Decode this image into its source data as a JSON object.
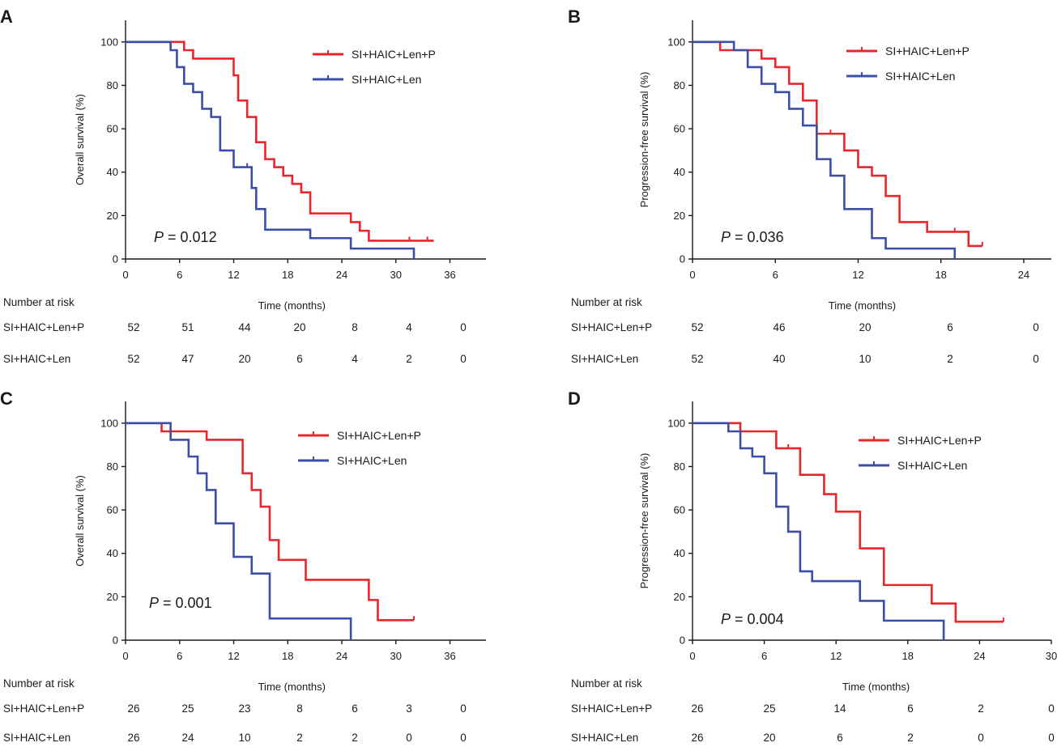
{
  "chart_data": [
    {
      "panel": "A",
      "type": "line",
      "title": "",
      "xlabel": "Time (months)",
      "ylabel": "Overall survival (%)",
      "xlim": [
        0,
        40
      ],
      "ylim": [
        0,
        110
      ],
      "xticks": [
        0,
        6,
        12,
        18,
        24,
        30,
        36
      ],
      "yticks": [
        0,
        20,
        40,
        60,
        80,
        100
      ],
      "pvalue": "= 0.012",
      "risk_title": "Number at risk",
      "risk_times": [
        0,
        6,
        12,
        18,
        24,
        30,
        36
      ],
      "series": [
        {
          "name": "SI+HAIC+Len+P",
          "color": "#e8262c",
          "x": [
            0,
            6.5,
            7.5,
            9,
            12,
            12.5,
            13.5,
            14.5,
            15.5,
            16.5,
            17.5,
            18.5,
            19.5,
            20.5,
            25,
            26,
            27,
            32,
            33.5,
            34.2
          ],
          "y": [
            100,
            96.2,
            92.3,
            92.3,
            84.6,
            73,
            65.4,
            53.8,
            46,
            42.3,
            38.4,
            34.6,
            30.7,
            21,
            17,
            13,
            8.4,
            8.4,
            8.4,
            8.4
          ],
          "censors": [
            [
              31.5,
              8.4
            ],
            [
              33.5,
              8.4
            ]
          ],
          "at_risk": [
            52,
            51,
            44,
            20,
            8,
            4,
            0
          ]
        },
        {
          "name": "SI+HAIC+Len",
          "color": "#3b4fa8",
          "x": [
            0,
            5,
            5.7,
            6.5,
            7.5,
            8.5,
            9.5,
            10.5,
            11,
            12,
            14,
            14.5,
            15.5,
            16.5,
            20.5,
            25,
            32
          ],
          "y": [
            100,
            96.2,
            88.4,
            80.7,
            76.9,
            69.2,
            65.4,
            50,
            50,
            42.3,
            32.7,
            23,
            13.5,
            13.5,
            9.6,
            4.8,
            0
          ],
          "censors": [
            [
              13.5,
              42.3
            ]
          ],
          "at_risk": [
            52,
            47,
            20,
            6,
            4,
            2,
            0
          ]
        }
      ]
    },
    {
      "panel": "B",
      "type": "line",
      "title": "",
      "xlabel": "Time (months)",
      "ylabel": "Progression-free survival (%)",
      "xlim": [
        0,
        26
      ],
      "ylim": [
        0,
        110
      ],
      "xticks": [
        0,
        6,
        12,
        18,
        24
      ],
      "yticks": [
        0,
        20,
        40,
        60,
        80,
        100
      ],
      "pvalue": "= 0.036",
      "risk_title": "Number at risk",
      "risk_times": [
        0,
        6,
        12,
        18,
        24
      ],
      "series": [
        {
          "name": "SI+HAIC+Len+P",
          "color": "#e8262c",
          "x": [
            0,
            2,
            5,
            6,
            7,
            8,
            9,
            11,
            12,
            13,
            14,
            15,
            17,
            20,
            21
          ],
          "y": [
            100,
            96.2,
            92.3,
            88.4,
            80.7,
            73,
            57.7,
            50,
            42.3,
            38.4,
            29,
            17,
            12.5,
            6,
            6
          ],
          "censors": [
            [
              10,
              57.7
            ],
            [
              19,
              12.5
            ],
            [
              21,
              6
            ]
          ],
          "at_risk": [
            52,
            46,
            20,
            6,
            0
          ]
        },
        {
          "name": "SI+HAIC+Len",
          "color": "#3b4fa8",
          "x": [
            0,
            3,
            4,
            5,
            6,
            7,
            8,
            9,
            10,
            11,
            13,
            14,
            19
          ],
          "y": [
            100,
            96.2,
            88.4,
            80.7,
            76.9,
            69.2,
            61.5,
            46,
            38.4,
            23,
            9.6,
            4.8,
            0
          ],
          "censors": [],
          "at_risk": [
            52,
            40,
            10,
            2,
            0
          ]
        }
      ]
    },
    {
      "panel": "C",
      "type": "line",
      "title": "",
      "xlabel": "Time (months)",
      "ylabel": "Overall survival (%)",
      "xlim": [
        0,
        40
      ],
      "ylim": [
        0,
        110
      ],
      "xticks": [
        0,
        6,
        12,
        18,
        24,
        30,
        36
      ],
      "yticks": [
        0,
        20,
        40,
        60,
        80,
        100
      ],
      "pvalue": "= 0.001",
      "risk_title": "Number at risk",
      "risk_times": [
        0,
        6,
        12,
        18,
        24,
        30,
        36
      ],
      "series": [
        {
          "name": "SI+HAIC+Len+P",
          "color": "#e8262c",
          "x": [
            0,
            4,
            9,
            13,
            14,
            15,
            16,
            17,
            20,
            27,
            28,
            32
          ],
          "y": [
            100,
            96.2,
            92.3,
            76.9,
            69.2,
            61.5,
            46.1,
            37,
            27.8,
            18.5,
            9.2,
            9.2
          ],
          "censors": [
            [
              32,
              9.2
            ]
          ],
          "at_risk": [
            26,
            25,
            23,
            8,
            6,
            3,
            0
          ]
        },
        {
          "name": "SI+HAIC+Len",
          "color": "#3b4fa8",
          "x": [
            0,
            5,
            7,
            8,
            9,
            10,
            12,
            14,
            16,
            25
          ],
          "y": [
            100,
            92.3,
            84.6,
            76.9,
            69.2,
            53.8,
            38.4,
            30.7,
            10,
            0
          ],
          "censors": [],
          "at_risk": [
            26,
            24,
            10,
            2,
            2,
            0,
            0
          ]
        }
      ]
    },
    {
      "panel": "D",
      "type": "line",
      "title": "",
      "xlabel": "Time (months)",
      "ylabel": "Progression-free survival (%)",
      "xlim": [
        0,
        30
      ],
      "ylim": [
        0,
        110
      ],
      "xticks": [
        0,
        6,
        12,
        18,
        24,
        30
      ],
      "yticks": [
        0,
        20,
        40,
        60,
        80,
        100
      ],
      "pvalue": "= 0.004",
      "risk_title": "Number at risk",
      "risk_times": [
        0,
        6,
        12,
        18,
        24,
        30
      ],
      "series": [
        {
          "name": "SI+HAIC+Len+P",
          "color": "#e8262c",
          "x": [
            0,
            4,
            7,
            9,
            11,
            12,
            14,
            15,
            16,
            20,
            22,
            26
          ],
          "y": [
            100,
            96.2,
            88.4,
            76.2,
            67.3,
            59.2,
            42.3,
            42.3,
            25.4,
            16.9,
            8.5,
            8.5
          ],
          "censors": [
            [
              8,
              88.4
            ],
            [
              26,
              8.5
            ]
          ],
          "at_risk": [
            26,
            25,
            14,
            6,
            2,
            0
          ]
        },
        {
          "name": "SI+HAIC+Len",
          "color": "#3b4fa8",
          "x": [
            0,
            3,
            4,
            5,
            6,
            7,
            8,
            9,
            10,
            14,
            16,
            21
          ],
          "y": [
            100,
            96.2,
            88.4,
            84.6,
            76.9,
            61.5,
            50,
            31.7,
            27.2,
            18.1,
            9,
            0
          ],
          "censors": [],
          "at_risk": [
            26,
            20,
            6,
            2,
            0,
            0
          ]
        }
      ]
    }
  ]
}
